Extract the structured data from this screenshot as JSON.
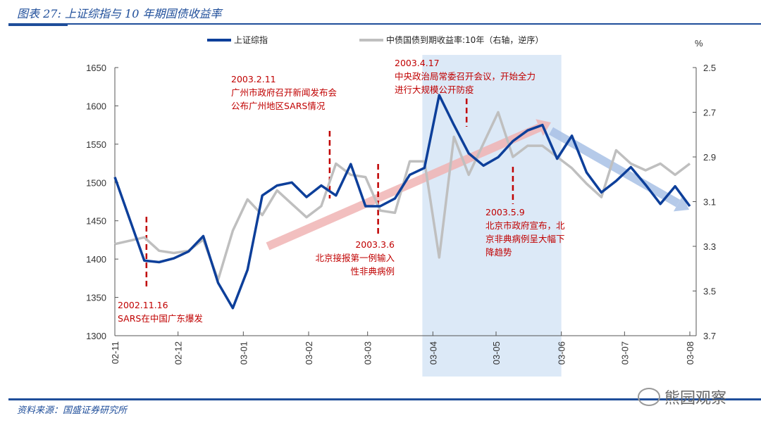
{
  "header": {
    "title": "图表 27:  上证综指与 10 年期国债收益率"
  },
  "footer": {
    "source": "资料来源：国盛证券研究所",
    "watermark": "熊园观察"
  },
  "colors": {
    "index": "#0d3f9a",
    "bond": "#bfbfbf",
    "annotation": "#c00000",
    "shade": "#dce9f7",
    "up_arrow": "#f0b4b4",
    "down_arrow": "#a9c1e6"
  },
  "chart_data": {
    "type": "line",
    "title": "",
    "xlabel": "",
    "ylabel_left": "",
    "ylabel_right": "%",
    "x_tick_labels": [
      "02-11",
      "02-12",
      "03-01",
      "03-02",
      "03-03",
      "03-04",
      "03-05",
      "03-06",
      "03-07",
      "03-08"
    ],
    "x_tick_dates": [
      "2002-11-01",
      "2002-12-01",
      "2003-01-01",
      "2003-02-01",
      "2003-03-01",
      "2003-04-01",
      "2003-05-01",
      "2003-06-01",
      "2003-07-01",
      "2003-08-01"
    ],
    "ylim_left": [
      1300,
      1650
    ],
    "yticks_left": [
      1300,
      1350,
      1400,
      1450,
      1500,
      1550,
      1600,
      1650
    ],
    "ylim_right": [
      2.5,
      3.7
    ],
    "right_axis_reversed": true,
    "yticks_right": [
      "2.5",
      "2.7",
      "2.9",
      "3.1",
      "3.3",
      "3.5",
      "3.7"
    ],
    "x": [
      "2002-11-01",
      "2002-11-15",
      "2002-11-22",
      "2002-11-29",
      "2002-12-06",
      "2002-12-13",
      "2002-12-20",
      "2002-12-27",
      "2003-01-03",
      "2003-01-10",
      "2003-01-17",
      "2003-01-24",
      "2003-01-31",
      "2003-02-07",
      "2003-02-14",
      "2003-02-21",
      "2003-02-28",
      "2003-03-07",
      "2003-03-14",
      "2003-03-21",
      "2003-03-28",
      "2003-04-04",
      "2003-04-11",
      "2003-04-18",
      "2003-04-25",
      "2003-05-02",
      "2003-05-09",
      "2003-05-16",
      "2003-05-23",
      "2003-05-30",
      "2003-06-06",
      "2003-06-13",
      "2003-06-20",
      "2003-06-27",
      "2003-07-04",
      "2003-07-11",
      "2003-07-18",
      "2003-07-25",
      "2003-08-01"
    ],
    "series": [
      {
        "name": "上证综指",
        "axis": "left",
        "values": [
          1507,
          1398,
          1396,
          1401,
          1410,
          1430,
          1369,
          1336,
          1386,
          1483,
          1496,
          1500,
          1481,
          1496,
          1483,
          1524,
          1469,
          1469,
          1479,
          1510,
          1519,
          1614,
          1575,
          1538,
          1522,
          1533,
          1554,
          1568,
          1575,
          1531,
          1561,
          1513,
          1487,
          1502,
          1520,
          1497,
          1472,
          1495,
          1469
        ]
      },
      {
        "name": "中债国债到期收益率:10年（右轴，逆序）",
        "axis": "right",
        "values": [
          3.29,
          3.26,
          3.32,
          3.33,
          3.32,
          3.27,
          3.45,
          3.23,
          3.09,
          3.16,
          3.05,
          3.11,
          3.17,
          3.12,
          2.93,
          2.98,
          2.99,
          3.14,
          3.15,
          2.92,
          2.92,
          3.35,
          2.81,
          2.98,
          2.84,
          2.7,
          2.9,
          2.85,
          2.85,
          2.9,
          2.95,
          3.02,
          3.08,
          2.87,
          2.93,
          2.96,
          2.93,
          2.98,
          2.93
        ]
      }
    ],
    "shaded_period": [
      "2003-03-27",
      "2003-06-01"
    ],
    "legend": "top",
    "grid": false,
    "annotations": [
      {
        "date": "2002-11-16",
        "lines": [
          "2002.11.16",
          "SARS在中国广东爆发"
        ]
      },
      {
        "date": "2003-02-11",
        "lines": [
          "2003.2.11",
          "广州市政府召开新闻发布会",
          "公布广州地区SARS情况"
        ]
      },
      {
        "date": "2003-03-06",
        "lines": [
          "2003.3.6",
          "北京接报第一例输入",
          "性非典病例"
        ]
      },
      {
        "date": "2003-04-17",
        "lines": [
          "2003.4.17",
          "中央政治局常委召开会议，开始全力",
          "进行大规模公开防疫"
        ]
      },
      {
        "date": "2003-05-09",
        "lines": [
          "2003.5.9",
          "北京市政府宣布，北",
          "京非典病例呈大幅下",
          "降趋势"
        ]
      }
    ]
  }
}
